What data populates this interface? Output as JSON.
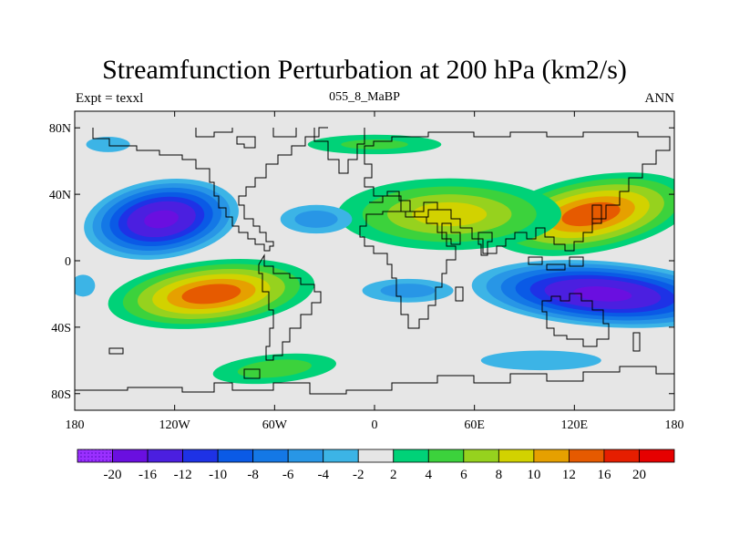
{
  "title": "Streamfunction Perturbation at 200 hPa (km2/s)",
  "left_label": "Expt = texxl",
  "center_label": "055_8_MaBP",
  "right_label": "ANN",
  "chart_data": {
    "type": "heatmap",
    "projection": "cylindrical-equidistant",
    "field": "streamfunction perturbation",
    "level_hPa": 200,
    "units": "km2/s",
    "x_ticks": [
      "180",
      "120W",
      "60W",
      "0",
      "60E",
      "120E",
      "180"
    ],
    "x_tick_values": [
      -180,
      -120,
      -60,
      0,
      60,
      120,
      180
    ],
    "y_ticks": [
      "80N",
      "40N",
      "0",
      "40S",
      "80S"
    ],
    "y_tick_values": [
      80,
      40,
      0,
      -40,
      -80
    ],
    "xlim": [
      -180,
      180
    ],
    "ylim": [
      -90,
      90
    ],
    "colorbar_labels": [
      "-20",
      "-16",
      "-12",
      "-10",
      "-8",
      "-6",
      "-4",
      "-2",
      "2",
      "4",
      "6",
      "8",
      "10",
      "12",
      "16",
      "20"
    ],
    "colorbar_colors": [
      "#8a2be2",
      "#6a0fe0",
      "#4b1fe0",
      "#1e32e6",
      "#0a5ae6",
      "#1478e6",
      "#2896e6",
      "#3cb4e6",
      "#e6e6e6",
      "#00d278",
      "#3cd23c",
      "#96d21e",
      "#d2d200",
      "#e6a000",
      "#e65a00",
      "#e61e00",
      "#e60000"
    ],
    "highs": [
      {
        "lon": 130,
        "lat": 28,
        "value": 14
      },
      {
        "lon": -98,
        "lat": -20,
        "value": 14
      },
      {
        "lon": 45,
        "lat": 28,
        "value": 9
      }
    ],
    "lows": [
      {
        "lon": -128,
        "lat": 25,
        "value": -18
      },
      {
        "lon": 137,
        "lat": -20,
        "value": -18
      }
    ]
  }
}
